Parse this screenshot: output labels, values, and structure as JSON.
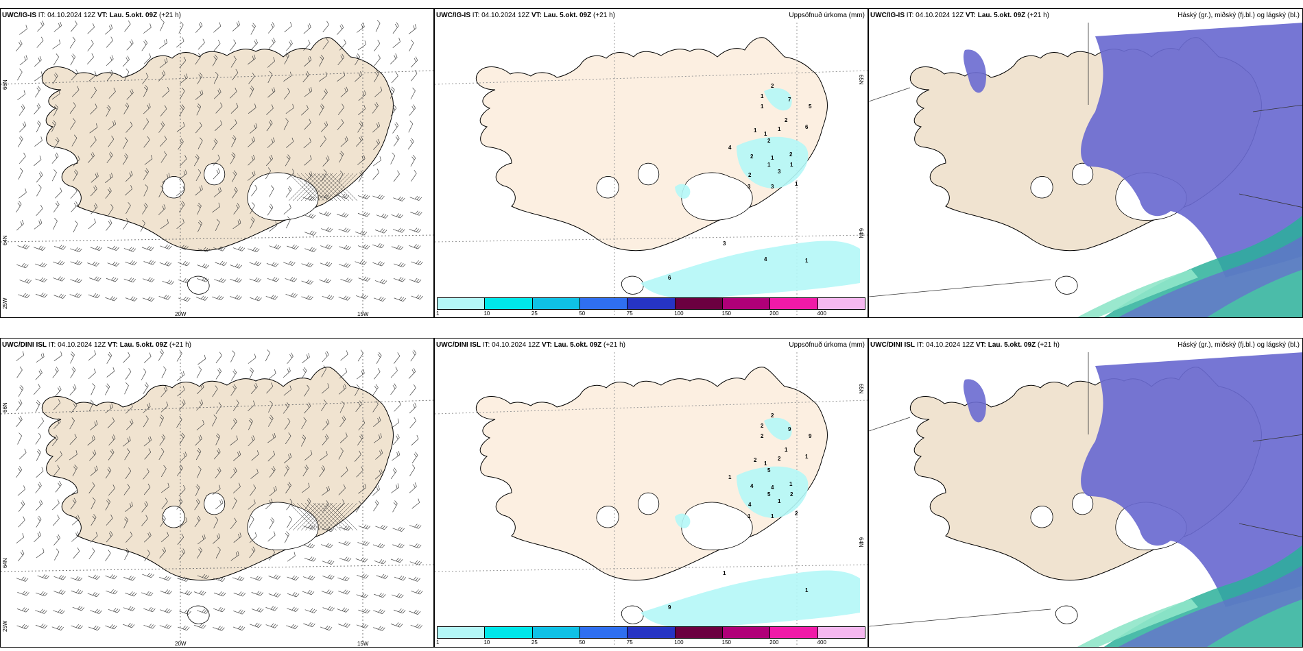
{
  "panels": {
    "top_left": {
      "model": "UWC/IG-IS",
      "it": "IT: 04.10.2024 12Z",
      "vt": "VT: Lau. 5.okt. 09Z",
      "lead": "(+21 h)"
    },
    "top_mid": {
      "model": "UWC/IG-IS",
      "it": "IT: 04.10.2024 12Z",
      "vt": "VT: Lau. 5.okt. 09Z",
      "lead": "(+21 h)",
      "product": "Uppsöfnuð úrkoma (mm)"
    },
    "top_right": {
      "model": "UWC/IG-IS",
      "it": "IT: 04.10.2024 12Z",
      "vt": "VT: Lau. 5.okt. 09Z",
      "lead": "(+21 h)",
      "product": "Háský (gr.), miðský (fj.bl.) og lágský (bl.)"
    },
    "bot_left": {
      "model": "UWC/DINI ISL",
      "it": "IT: 04.10.2024 12Z",
      "vt": "VT: Lau. 5.okt. 09Z",
      "lead": "(+21 h)"
    },
    "bot_mid": {
      "model": "UWC/DINI ISL",
      "it": "IT: 04.10.2024 12Z",
      "vt": "VT: Lau. 5.okt. 09Z",
      "lead": "(+21 h)",
      "product": "Uppsöfnuð úrkoma (mm)"
    },
    "bot_right": {
      "model": "UWC/DINI ISL",
      "it": "IT: 04.10.2024 12Z",
      "vt": "VT: Lau. 5.okt. 09Z",
      "lead": "(+21 h)",
      "product": "Háský (gr.), miðský (fj.bl.) og lágský (bl.)"
    }
  },
  "grid_labels": {
    "lat_66": "66N",
    "lat_64": "64N",
    "lat_65": "65N",
    "lon_25": "25W",
    "lon_20": "20W",
    "lon_15": "15W"
  },
  "colorbar": {
    "ticks": [
      "1",
      "10",
      "25",
      "50",
      "75",
      "100",
      "150",
      "200",
      "400"
    ],
    "colors": [
      "#b4f7f7",
      "#00e7ea",
      "#0fc1e6",
      "#2f6ff0",
      "#2634c4",
      "#6b0040",
      "#b00078",
      "#f01aa8",
      "#f6b8f0"
    ]
  },
  "colors": {
    "land": "#f0e3d0",
    "land_precip": "#fcefe1",
    "precip_light": "#b4f7f7",
    "cloud_high": "#6a6ad0",
    "cloud_mid": "#3c8fd8",
    "cloud_low": "#2bb09a"
  },
  "precip_labels_top": [
    "2",
    "1",
    "1",
    "7",
    "5",
    "6",
    "1",
    "2",
    "1",
    "1",
    "2",
    "4",
    "2",
    "1",
    "1",
    "2",
    "3",
    "2",
    "1",
    "3",
    "1",
    "3",
    "6",
    "1",
    "3",
    "4"
  ],
  "precip_labels_bot": [
    "2",
    "2",
    "2",
    "9",
    "9",
    "1",
    "2",
    "1",
    "1",
    "2",
    "5",
    "1",
    "4",
    "4",
    "5",
    "4",
    "1",
    "1",
    "2",
    "1",
    "2",
    "1",
    "9",
    "1",
    "1"
  ]
}
